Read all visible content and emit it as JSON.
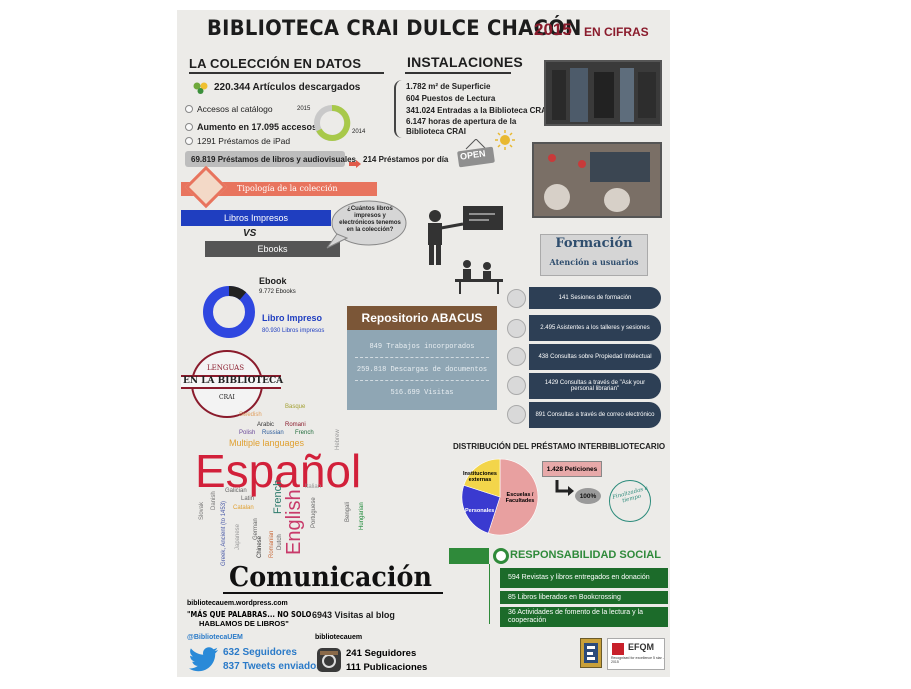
{
  "header": {
    "title": "BIBLIOTECA CRAI DULCE CHACÓN",
    "year": "2015",
    "suffix": "EN CIFRAS"
  },
  "coleccion": {
    "heading": "LA COLECCIÓN EN DATOS",
    "articulos": "220.344 Artículos descargados",
    "accesos": "Accesos al catálogo",
    "aumento": "Aumento en 17.095 accesos",
    "ipad": "1291 Préstamos de iPad",
    "prestamos": "69.819 Préstamos de libros y audiovisuales",
    "por_dia": "214 Préstamos por día",
    "donut_label_top": "2015",
    "donut_label_bottom": "2014"
  },
  "instalaciones": {
    "heading": "INSTALACIONES",
    "superficie": "1.782 m² de Superficie",
    "puestos": "604 Puestos de Lectura",
    "entradas": "341.024 Entradas a la Biblioteca CRAI",
    "horas_1": "6.147 horas de apertura de la",
    "horas_2": "Biblioteca CRAI",
    "open_sign": "OPEN"
  },
  "tipologia": {
    "banner": "Tipología de la colección",
    "impresos": "Libros Impresos",
    "vs": "VS",
    "ebooks": "Ebooks",
    "bubble": "¿Cuántos libros impresos y electrónicos tenemos en la colección?",
    "ebook_label": "Ebook",
    "ebook_count": "9.772 Ebooks",
    "impreso_label": "Libro Impreso",
    "impreso_count": "80.930 Libros impresos"
  },
  "formacion": {
    "title": "Formación",
    "subtitle": "Atención a usuarios",
    "items": [
      "141 Sesiones de formación",
      "2.495 Asistentes a los talleres y sesiones",
      "438 Consultas sobre Propiedad Intelectual",
      "1429 Consultas a través de \"Ask your personal librarian\"",
      "891 Consultas a través de correo electrónico"
    ]
  },
  "repositorio": {
    "title": "Repositorio ABACUS",
    "lines": [
      "849 Trabajos incorporados",
      "259.818 Descargas de documentos",
      "516.699 Visitas"
    ]
  },
  "lenguas": {
    "line1": "LENGUAS",
    "line2": "EN LA BIBLIOTECA",
    "line3": "CRAI",
    "big": "Español",
    "english": "English",
    "multiple": "Multiple languages",
    "words": [
      "Basque",
      "Swedish",
      "Arabic",
      "Romani",
      "Polish",
      "Russian",
      "French",
      "Hebrew",
      "Italian",
      "Galician",
      "Latin",
      "Catalan",
      "Danish",
      "Slovak",
      "Japanese",
      "Chinese",
      "German",
      "Dutch",
      "Romanian",
      "Portuguese",
      "Bengali",
      "Hungarian",
      "Greek, Ancient (to 1453)",
      "Spanish",
      "Bangla"
    ]
  },
  "prestamo_inter": {
    "title": "DISTRIBUCIÓN DEL PRÉSTAMO INTERBIBLIOTECARIO",
    "peticiones": "1.428 Peticiones",
    "percent": "100%",
    "stamp": "Finalizadas a tiempo"
  },
  "chart_data": {
    "type": "pie",
    "title": "DISTRIBUCIÓN DEL PRÉSTAMO INTERBIBLIOTECARIO",
    "categories": [
      "Escuelas / Facultades",
      "Personales",
      "Instituciones externas"
    ],
    "values": [
      55,
      25,
      20
    ],
    "colors": [
      "#e8a0a0",
      "#3a3ad0",
      "#f3d54a"
    ]
  },
  "responsabilidad": {
    "title": "RESPONSABILIDAD SOCIAL",
    "items": [
      "594 Revistas y libros entregados en donación",
      "85 Libros liberados en Bookcrossing",
      "36 Actividades de fomento de la lectura y la cooperación"
    ]
  },
  "comunicacion": {
    "title": "Comunicación",
    "blog_url": "bibliotecauem.wordpress.com",
    "blog_tagline_1": "\"MÁS QUE PALABRAS... NO SOLO",
    "blog_tagline_2": "HABLAMOS DE LIBROS\"",
    "blog_visits": "6943 Visitas al blog",
    "twitter_handle": "@BibliotecaUEM",
    "twitter_followers": "632 Seguidores",
    "twitter_tweets": "837 Tweets enviados",
    "ig_handle": "bibliotecauem",
    "ig_followers": "241 Seguidores",
    "ig_posts": "111 Publicaciones"
  },
  "badges": {
    "efqm": "EFQM",
    "efqm_sub": "Recognised for excellence 5 star - 2015"
  }
}
